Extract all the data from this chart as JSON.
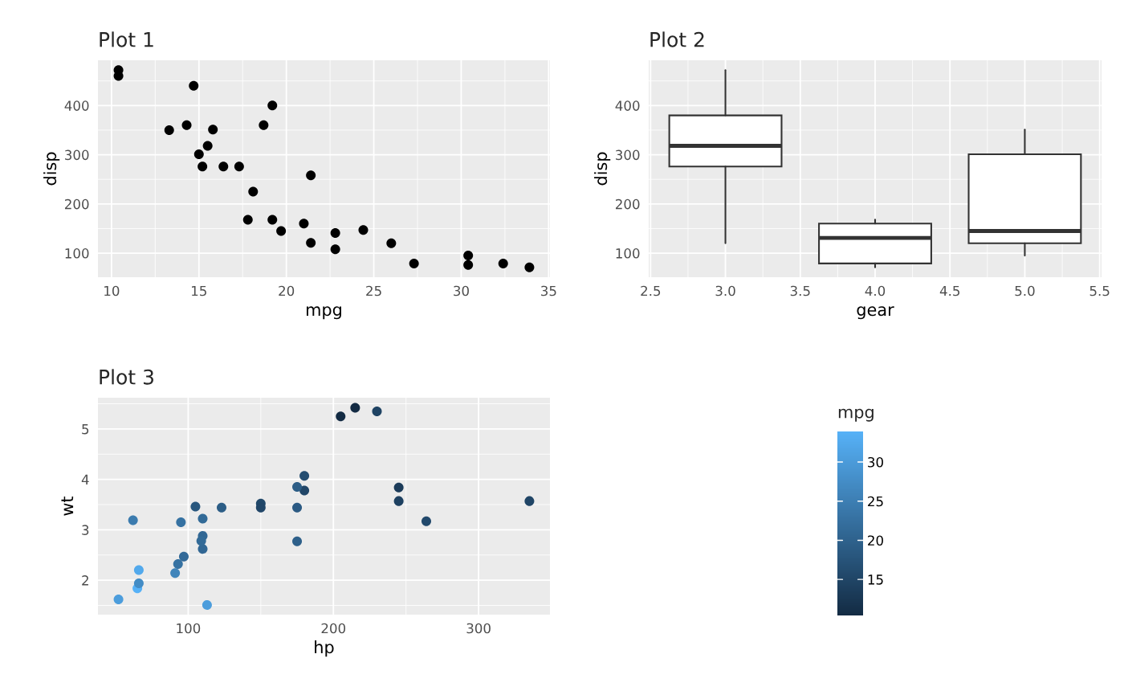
{
  "chart_data": [
    {
      "type": "scatter",
      "title": "Plot 1",
      "xlabel": "mpg",
      "ylabel": "disp",
      "color": "#000000",
      "marker": "circle",
      "grid": true,
      "xlim": [
        9.225,
        35.075
      ],
      "xticks": [
        10,
        15,
        20,
        25,
        30,
        35
      ],
      "ylim": [
        51.1,
        492
      ],
      "yticks": [
        100,
        200,
        300,
        400
      ],
      "x": [
        21.0,
        22.8,
        21.4,
        18.7,
        18.1,
        14.3,
        24.4,
        22.8,
        19.2,
        17.8,
        16.4,
        17.3,
        15.2,
        10.4,
        10.4,
        14.7,
        32.4,
        30.4,
        33.9,
        15.5,
        13.3,
        19.2,
        27.3,
        26.0,
        30.4,
        15.8,
        19.7,
        15.0,
        21.4
      ],
      "values": [
        160,
        108,
        258,
        360,
        225,
        360,
        147,
        141,
        168,
        168,
        276,
        276,
        276,
        472,
        460,
        440,
        79,
        76,
        71,
        318,
        350,
        400,
        79,
        120,
        95,
        351,
        145,
        301,
        121
      ]
    },
    {
      "type": "box",
      "title": "Plot 2",
      "xlabel": "gear",
      "ylabel": "disp",
      "grid": true,
      "xlim": [
        2.4875,
        5.5125
      ],
      "xticks": [
        {
          "value": 2.5,
          "label": "2.5"
        },
        {
          "value": 3,
          "label": "3.0"
        },
        {
          "value": 3.5,
          "label": "3.5"
        },
        {
          "value": 4,
          "label": "4.0"
        },
        {
          "value": 4.5,
          "label": "4.5"
        },
        {
          "value": 5,
          "label": "5.0"
        },
        {
          "value": 5.5,
          "label": "5.5"
        }
      ],
      "ylim": [
        51.1,
        492
      ],
      "yticks": [
        100,
        200,
        300,
        400
      ],
      "x": [
        3,
        4,
        5
      ],
      "boxes": [
        {
          "low": 120,
          "q1": 276,
          "median": 318,
          "q3": 380,
          "high": 472
        },
        {
          "low": 71,
          "q1": 79,
          "median": 131,
          "q3": 160,
          "high": 168
        },
        {
          "low": 95,
          "q1": 120,
          "median": 145,
          "q3": 301,
          "high": 351
        }
      ]
    },
    {
      "type": "scatter",
      "title": "Plot 3",
      "xlabel": "hp",
      "ylabel": "wt",
      "marker": "circle",
      "grid": true,
      "clabel": "mpg",
      "clim": [
        10.4,
        33.9
      ],
      "cticks": [
        15,
        20,
        25,
        30
      ],
      "xlim": [
        37.85,
        349.15
      ],
      "xticks": [
        100,
        200,
        300
      ],
      "ylim": [
        1.317,
        5.62
      ],
      "yticks": [
        2,
        3,
        4,
        5
      ],
      "x": [
        110,
        110,
        93,
        110,
        175,
        105,
        245,
        62,
        95,
        123,
        180,
        180,
        205,
        215,
        230,
        66,
        52,
        65,
        97,
        150,
        150,
        245,
        175,
        66,
        91,
        113,
        264,
        175,
        335,
        109
      ],
      "values": [
        2.62,
        2.88,
        2.32,
        3.22,
        3.44,
        3.46,
        3.57,
        3.19,
        3.15,
        3.44,
        4.07,
        3.78,
        5.25,
        5.42,
        5.35,
        2.2,
        1.62,
        1.84,
        2.47,
        3.52,
        3.44,
        3.84,
        3.85,
        1.94,
        2.14,
        1.51,
        3.17,
        2.77,
        3.57,
        2.78
      ],
      "cvalues": [
        21.0,
        21.0,
        22.8,
        21.4,
        18.7,
        18.1,
        14.3,
        24.4,
        22.8,
        19.2,
        16.4,
        15.2,
        10.4,
        10.4,
        14.7,
        32.4,
        30.4,
        33.9,
        21.5,
        15.5,
        15.2,
        13.3,
        19.2,
        27.3,
        26.0,
        30.4,
        15.8,
        19.7,
        15.0,
        21.4
      ]
    }
  ]
}
